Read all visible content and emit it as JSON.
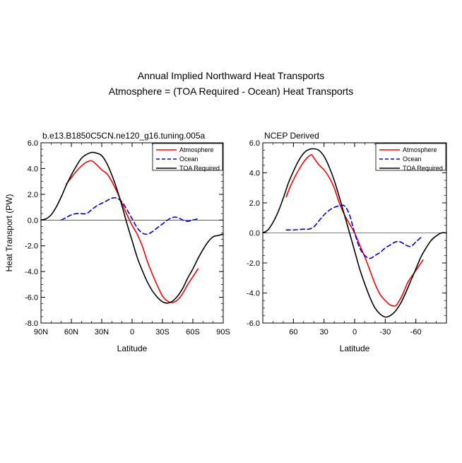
{
  "title": "Annual Implied Northward Heat Transports",
  "subtitle": "Atmosphere = (TOA Required - Ocean) Heat Transports",
  "colors": {
    "atmosphere": "#ff0000",
    "ocean": "#0000dd",
    "toa": "#000000"
  },
  "chart_data": [
    {
      "type": "line",
      "panel_title": "b.e13.B1850C5CN.ne120_g16.tuning.005a",
      "xlabel": "Latitude",
      "ylabel": "Heat Transport (PW)",
      "xlim": [
        90,
        -90
      ],
      "ylim": [
        -8,
        6
      ],
      "xticks": [
        90,
        60,
        30,
        0,
        -30,
        -60,
        -90
      ],
      "xtick_labels": [
        "90N",
        "60N",
        "30N",
        "0",
        "30S",
        "60S",
        "90S"
      ],
      "yticks": [
        6,
        4,
        2,
        0,
        -2,
        -4,
        -6,
        -8
      ],
      "ytick_labels": [
        "6.0",
        "4.0",
        "2.0",
        "0.0",
        "-2.0",
        "-4.0",
        "-6.0",
        "-8.0"
      ],
      "grid": false,
      "legend_position": "top-right",
      "series": [
        {
          "name": "Atmosphere",
          "style": "solid",
          "color": "#ff0000",
          "x": [
            65,
            60,
            55,
            50,
            45,
            40,
            35,
            30,
            25,
            20,
            15,
            10,
            5,
            0,
            -5,
            -10,
            -15,
            -20,
            -25,
            -30,
            -35,
            -40,
            -45,
            -50,
            -55,
            -60,
            -65
          ],
          "y": [
            2.8,
            3.3,
            3.8,
            4.2,
            4.5,
            4.6,
            4.3,
            3.9,
            3.6,
            3.0,
            2.2,
            1.3,
            0.4,
            -0.4,
            -1.1,
            -2.0,
            -3.2,
            -4.2,
            -5.1,
            -5.9,
            -6.3,
            -6.4,
            -6.2,
            -5.7,
            -5.0,
            -4.4,
            -3.8
          ]
        },
        {
          "name": "Ocean",
          "style": "dashed",
          "color": "#0000dd",
          "x": [
            70,
            65,
            60,
            55,
            50,
            45,
            40,
            35,
            30,
            25,
            20,
            15,
            10,
            5,
            0,
            -5,
            -10,
            -15,
            -20,
            -25,
            -30,
            -35,
            -40,
            -45,
            -50,
            -55,
            -60,
            -65
          ],
          "y": [
            0.0,
            0.2,
            0.4,
            0.5,
            0.5,
            0.5,
            0.8,
            1.1,
            1.3,
            1.5,
            1.7,
            1.7,
            1.4,
            0.8,
            0.1,
            -0.6,
            -1.0,
            -1.1,
            -0.9,
            -0.6,
            -0.3,
            0.0,
            0.2,
            0.2,
            0.0,
            -0.1,
            0.0,
            0.1
          ]
        },
        {
          "name": "TOA Required",
          "style": "solid",
          "color": "#000000",
          "x": [
            90,
            85,
            80,
            75,
            70,
            65,
            60,
            55,
            50,
            45,
            40,
            35,
            30,
            25,
            20,
            15,
            10,
            5,
            0,
            -5,
            -10,
            -15,
            -20,
            -25,
            -30,
            -35,
            -40,
            -45,
            -50,
            -55,
            -60,
            -65,
            -70,
            -75,
            -80,
            -85,
            -90
          ],
          "y": [
            0.0,
            0.1,
            0.4,
            1.0,
            1.8,
            2.7,
            3.5,
            4.2,
            4.8,
            5.1,
            5.25,
            5.2,
            5.0,
            4.4,
            3.5,
            2.4,
            1.1,
            -0.3,
            -1.6,
            -2.9,
            -3.9,
            -4.8,
            -5.5,
            -6.0,
            -6.35,
            -6.45,
            -6.3,
            -5.9,
            -5.3,
            -4.5,
            -3.8,
            -3.0,
            -2.3,
            -1.7,
            -1.3,
            -1.2,
            -1.1
          ]
        }
      ]
    },
    {
      "type": "line",
      "panel_title": "NCEP Derived",
      "xlabel": "Latitude",
      "ylabel": "",
      "xlim": [
        90,
        -90
      ],
      "ylim": [
        -6,
        6
      ],
      "xticks": [
        60,
        30,
        0,
        -30,
        -60
      ],
      "xtick_labels": [
        "60",
        "30",
        "0",
        "-30",
        "-60"
      ],
      "yticks": [
        6,
        4,
        2,
        0,
        -2,
        -4,
        -6
      ],
      "ytick_labels": [
        "6.0",
        "4.0",
        "2.0",
        "0.0",
        "-2.0",
        "-4.0",
        "-6.0"
      ],
      "grid": false,
      "legend_position": "top-right",
      "series": [
        {
          "name": "Atmosphere",
          "style": "solid",
          "color": "#ff0000",
          "x": [
            67,
            63,
            58,
            53,
            48,
            45,
            42,
            40,
            37,
            33,
            30,
            25,
            20,
            15,
            10,
            5,
            0,
            -5,
            -10,
            -15,
            -20,
            -25,
            -30,
            -35,
            -40,
            -42,
            -47,
            -52,
            -57,
            -62,
            -67
          ],
          "y": [
            2.4,
            3.1,
            3.8,
            4.4,
            4.9,
            5.1,
            5.2,
            5.0,
            4.7,
            4.4,
            4.2,
            3.7,
            3.0,
            2.0,
            1.2,
            0.6,
            0.0,
            -0.8,
            -1.6,
            -2.5,
            -3.4,
            -4.1,
            -4.5,
            -4.8,
            -4.85,
            -4.7,
            -4.1,
            -3.3,
            -2.8,
            -2.3,
            -1.8
          ]
        },
        {
          "name": "Ocean",
          "style": "dashed",
          "color": "#0000dd",
          "x": [
            67,
            60,
            50,
            45,
            40,
            35,
            30,
            25,
            20,
            15,
            10,
            5,
            0,
            -5,
            -10,
            -15,
            -20,
            -25,
            -30,
            -35,
            -40,
            -45,
            -50,
            -55,
            -60,
            -65
          ],
          "y": [
            0.2,
            0.2,
            0.25,
            0.25,
            0.4,
            0.8,
            1.2,
            1.5,
            1.7,
            1.8,
            1.8,
            1.2,
            0.0,
            -1.0,
            -1.5,
            -1.7,
            -1.5,
            -1.3,
            -1.0,
            -0.8,
            -0.6,
            -0.6,
            -0.8,
            -0.9,
            -0.6,
            -0.3
          ]
        },
        {
          "name": "TOA Required",
          "style": "solid",
          "color": "#000000",
          "x": [
            90,
            85,
            80,
            75,
            70,
            65,
            60,
            55,
            50,
            45,
            40,
            35,
            30,
            25,
            20,
            15,
            10,
            5,
            0,
            -5,
            -10,
            -15,
            -20,
            -25,
            -30,
            -35,
            -40,
            -45,
            -50,
            -55,
            -60,
            -65,
            -70,
            -75,
            -80,
            -85,
            -90
          ],
          "y": [
            0.0,
            0.2,
            0.7,
            1.4,
            2.3,
            3.3,
            4.1,
            4.8,
            5.3,
            5.55,
            5.6,
            5.5,
            5.1,
            4.4,
            3.5,
            2.4,
            1.2,
            0.0,
            -1.2,
            -2.4,
            -3.4,
            -4.3,
            -5.0,
            -5.4,
            -5.6,
            -5.5,
            -5.2,
            -4.7,
            -4.0,
            -3.2,
            -2.4,
            -1.6,
            -1.0,
            -0.5,
            -0.2,
            0.0,
            0.0
          ]
        }
      ]
    }
  ]
}
